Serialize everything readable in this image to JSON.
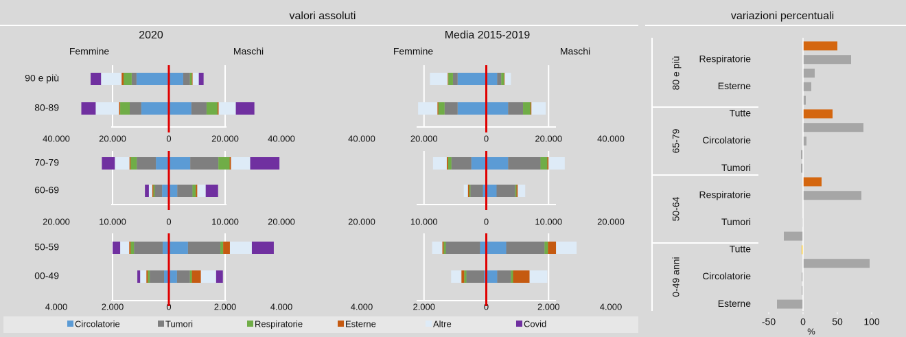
{
  "headings": {
    "left": "valori assoluti",
    "right": "variazioni percentuali"
  },
  "causes": [
    {
      "name": "Circolatorie",
      "color": "#5b9bd5"
    },
    {
      "name": "Tumori",
      "color": "#7f7f7f"
    },
    {
      "name": "Respiratorie",
      "color": "#70ad47"
    },
    {
      "name": "Esterne",
      "color": "#c55a11"
    },
    {
      "name": "Altre",
      "color": "#deebf7"
    },
    {
      "name": "Covid",
      "color": "#7030a0"
    }
  ],
  "chart_data": [
    {
      "type": "pyramid",
      "title": "2020",
      "left_label": "Femmine",
      "right_label": "Maschi",
      "categories": [
        "90 e più",
        "80-89"
      ],
      "xlim": [
        -40000,
        40000
      ],
      "xticks": [
        {
          "value": -40000,
          "label": "40.000"
        },
        {
          "value": -20000,
          "label": "20.000"
        },
        0,
        {
          "value": 20000,
          "label": "20.000"
        },
        {
          "value": 40000,
          "label": "40.000"
        }
      ],
      "series": [
        {
          "female": [
            11500,
            9800
          ],
          "male": [
            5100,
            8000
          ]
        },
        {
          "female": [
            1700,
            4100
          ],
          "male": [
            2400,
            5400
          ]
        },
        {
          "female": [
            2900,
            3400
          ],
          "male": [
            700,
            3900
          ]
        },
        {
          "female": [
            700,
            400
          ],
          "male": [
            250,
            400
          ]
        },
        {
          "female": [
            7300,
            8300
          ],
          "male": [
            2200,
            6100
          ]
        },
        {
          "female": [
            3700,
            5100
          ],
          "male": [
            1700,
            6600
          ]
        }
      ]
    },
    {
      "type": "pyramid",
      "title": "Media 2015-2019",
      "left_label": "Femmine",
      "right_label": "Maschi",
      "categories": [
        null,
        null
      ],
      "xlim": [
        -40000,
        40000
      ],
      "xticks": [
        {
          "value": -40000,
          "label": "40.000"
        },
        {
          "value": -20000,
          "label": "20.000"
        },
        0,
        {
          "value": 20000,
          "label": "20.000"
        },
        {
          "value": 40000,
          "label": "40.000"
        }
      ],
      "series": [
        {
          "female": [
            9200,
            9200
          ],
          "male": [
            3500,
            7000
          ]
        },
        {
          "female": [
            1500,
            4200
          ],
          "male": [
            1300,
            4800
          ]
        },
        {
          "female": [
            1500,
            2000
          ],
          "male": [
            900,
            2400
          ]
        },
        {
          "female": [
            200,
            300
          ],
          "male": [
            200,
            300
          ]
        },
        {
          "female": [
            5700,
            6200
          ],
          "male": [
            2000,
            4600
          ]
        },
        {
          "female": [
            0,
            0
          ],
          "male": [
            0,
            0
          ]
        }
      ]
    },
    {
      "type": "pyramid",
      "categories": [
        "70-79",
        "60-69"
      ],
      "xlim": [
        -20000,
        20000
      ],
      "xticks": [
        {
          "value": -20000,
          "label": "20.000"
        },
        {
          "value": -10000,
          "label": "10.000"
        },
        0,
        {
          "value": 10000,
          "label": "10.000"
        },
        {
          "value": 20000,
          "label": "20.000"
        }
      ],
      "series": [
        {
          "female": [
            2300,
            1200
          ],
          "male": [
            3800,
            1500
          ]
        },
        {
          "female": [
            3400,
            1300
          ],
          "male": [
            5000,
            2700
          ]
        },
        {
          "female": [
            1100,
            250
          ],
          "male": [
            2000,
            600
          ]
        },
        {
          "female": [
            200,
            200
          ],
          "male": [
            250,
            250
          ]
        },
        {
          "female": [
            2600,
            600
          ],
          "male": [
            3400,
            1500
          ]
        },
        {
          "female": [
            2300,
            700
          ],
          "male": [
            5200,
            2200
          ]
        }
      ]
    },
    {
      "type": "pyramid",
      "categories": [
        null,
        null
      ],
      "xlim": [
        -20000,
        20000
      ],
      "xticks": [
        {
          "value": -20000,
          "label": "20.000"
        },
        {
          "value": -10000,
          "label": "10.000"
        },
        0,
        {
          "value": 10000,
          "label": "10.000"
        },
        {
          "value": 20000,
          "label": "20.000"
        }
      ],
      "series": [
        {
          "female": [
            2400,
            550
          ],
          "male": [
            3500,
            1650
          ]
        },
        {
          "female": [
            3200,
            2000
          ],
          "male": [
            5200,
            3000
          ]
        },
        {
          "female": [
            550,
            200
          ],
          "male": [
            1100,
            200
          ]
        },
        {
          "female": [
            200,
            200
          ],
          "male": [
            200,
            200
          ]
        },
        {
          "female": [
            2200,
            660
          ],
          "male": [
            2600,
            1200
          ]
        },
        {
          "female": [
            0,
            0
          ],
          "male": [
            0,
            0
          ]
        }
      ]
    },
    {
      "type": "pyramid",
      "categories": [
        "50-59",
        "00-49"
      ],
      "xlim": [
        -4000,
        4000
      ],
      "xticks": [
        {
          "value": -4000,
          "label": "4.000"
        },
        {
          "value": -2000,
          "label": "2.000"
        },
        0,
        {
          "value": 2000,
          "label": "2.000"
        },
        {
          "value": 4000,
          "label": "4.000"
        }
      ],
      "series": [
        {
          "female": [
            220,
            170
          ],
          "male": [
            680,
            290
          ]
        },
        {
          "female": [
            1020,
            510
          ],
          "male": [
            1150,
            460
          ]
        },
        {
          "female": [
            120,
            70
          ],
          "male": [
            100,
            70
          ]
        },
        {
          "female": [
            50,
            50
          ],
          "male": [
            240,
            320
          ]
        },
        {
          "female": [
            320,
            220
          ],
          "male": [
            780,
            540
          ]
        },
        {
          "female": [
            270,
            100
          ],
          "male": [
            780,
            240
          ]
        }
      ]
    },
    {
      "type": "pyramid",
      "categories": [
        null,
        null
      ],
      "xlim": [
        -4000,
        4000
      ],
      "xticks": [
        {
          "value": -4000,
          "label": "4.000"
        },
        {
          "value": -2000,
          "label": "2.000"
        },
        0,
        {
          "value": 2000,
          "label": "2.000"
        },
        {
          "value": 4000,
          "label": "4.000"
        }
      ],
      "series": [
        {
          "female": [
            200,
            70
          ],
          "male": [
            640,
            350
          ]
        },
        {
          "female": [
            1100,
            570
          ],
          "male": [
            1230,
            440
          ]
        },
        {
          "female": [
            70,
            70
          ],
          "male": [
            110,
            70
          ]
        },
        {
          "female": [
            40,
            90
          ],
          "male": [
            260,
            530
          ]
        },
        {
          "female": [
            330,
            330
          ],
          "male": [
            660,
            570
          ]
        },
        {
          "female": [
            0,
            0
          ],
          "male": [
            0,
            0
          ]
        }
      ]
    },
    {
      "type": "hbar_grouped",
      "xlim": [
        -70,
        135
      ],
      "xticks": [
        -50,
        0,
        50,
        100
      ],
      "xlabel": "%",
      "groups": [
        {
          "label": "80 e più",
          "categories": [
            null,
            "Respiratorie",
            null,
            "Esterne",
            null
          ],
          "values": [
            50,
            70,
            17,
            12,
            4
          ],
          "colors": [
            "#d4660f",
            "#a6a6a6",
            "#a6a6a6",
            "#a6a6a6",
            "#a6a6a6"
          ]
        },
        {
          "label": "65-79",
          "categories": [
            "Tutte",
            null,
            "Circolatorie",
            null,
            "Tumori"
          ],
          "values": [
            43,
            88,
            5,
            -3,
            -3
          ],
          "colors": [
            "#d4660f",
            "#a6a6a6",
            "#a6a6a6",
            "#a6a6a6",
            "#a6a6a6"
          ]
        },
        {
          "label": "50-64",
          "categories": [
            null,
            "Respiratorie",
            null,
            "Tumori",
            null
          ],
          "values": [
            27,
            85,
            0.5,
            -1,
            -28
          ],
          "colors": [
            "#d4660f",
            "#a6a6a6",
            "#a6a6a6",
            "#a6a6a6",
            "#a6a6a6"
          ]
        },
        {
          "label": "0-49 anni",
          "categories": [
            "Tutte",
            null,
            "Circolatorie",
            null,
            "Esterne"
          ],
          "values": [
            -2,
            97,
            -2,
            -2,
            -38
          ],
          "colors": [
            "#ffc000",
            "#a6a6a6",
            "#a6a6a6",
            "#a6a6a6",
            "#a6a6a6"
          ]
        }
      ]
    }
  ]
}
